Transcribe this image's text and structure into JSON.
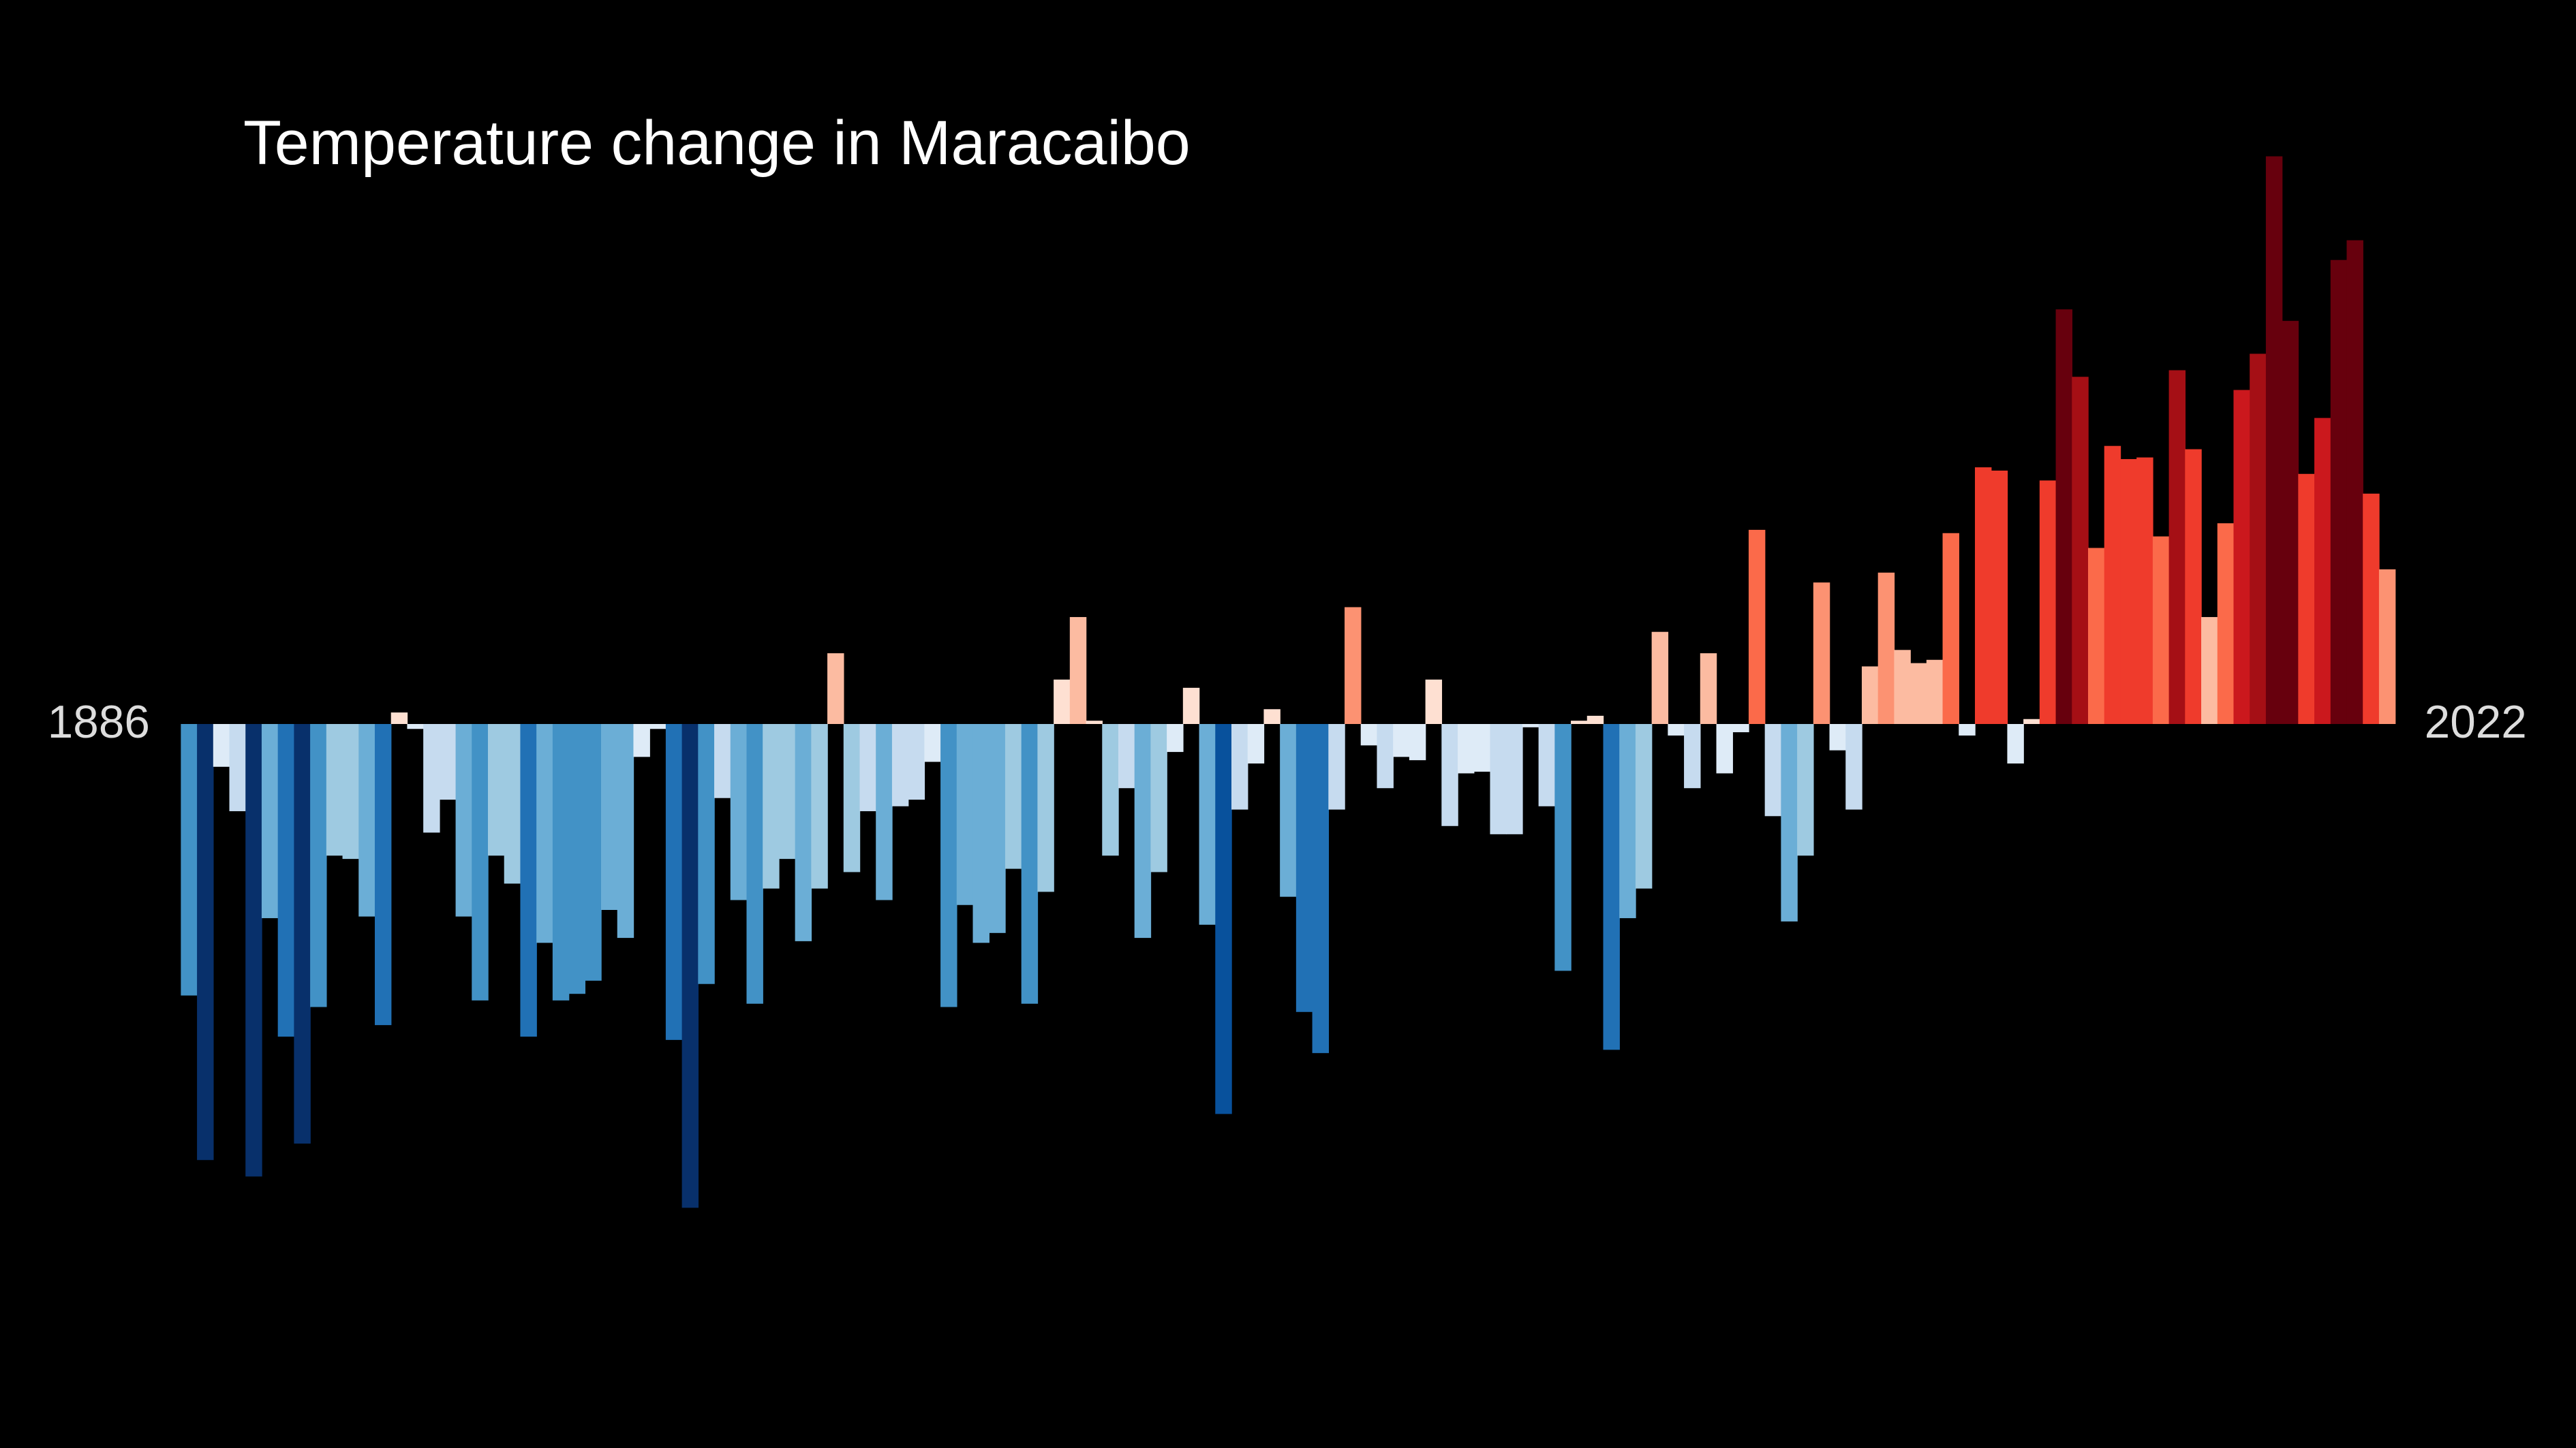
{
  "chart_data": {
    "type": "bar",
    "title": "Temperature change in Maracaibo",
    "x": [
      1886,
      1887,
      1888,
      1889,
      1890,
      1891,
      1892,
      1893,
      1894,
      1895,
      1896,
      1897,
      1898,
      1899,
      1900,
      1901,
      1902,
      1903,
      1904,
      1905,
      1906,
      1907,
      1908,
      1909,
      1910,
      1911,
      1912,
      1913,
      1914,
      1915,
      1916,
      1917,
      1918,
      1919,
      1920,
      1921,
      1922,
      1923,
      1924,
      1925,
      1926,
      1927,
      1928,
      1929,
      1930,
      1931,
      1932,
      1933,
      1934,
      1935,
      1936,
      1937,
      1938,
      1939,
      1940,
      1941,
      1942,
      1943,
      1944,
      1945,
      1946,
      1947,
      1948,
      1949,
      1950,
      1951,
      1952,
      1953,
      1954,
      1955,
      1956,
      1957,
      1958,
      1959,
      1960,
      1961,
      1962,
      1963,
      1964,
      1965,
      1966,
      1967,
      1968,
      1969,
      1970,
      1971,
      1972,
      1973,
      1974,
      1975,
      1976,
      1977,
      1978,
      1979,
      1980,
      1981,
      1982,
      1983,
      1984,
      1985,
      1986,
      1987,
      1988,
      1989,
      1990,
      1991,
      1992,
      1993,
      1994,
      1995,
      1996,
      1997,
      1998,
      1999,
      2000,
      2001,
      2002,
      2003,
      2004,
      2005,
      2006,
      2007,
      2008,
      2009,
      2010,
      2011,
      2012,
      2013,
      2014,
      2015,
      2016,
      2017,
      2018,
      2019,
      2020,
      2021,
      2022
    ],
    "values": [
      -1.65,
      -2.65,
      -0.26,
      -0.53,
      -2.75,
      -1.18,
      -1.9,
      -2.55,
      -1.72,
      -0.8,
      -0.82,
      -1.17,
      -1.83,
      0.07,
      -0.03,
      -0.66,
      -0.46,
      -1.17,
      -1.68,
      -0.8,
      -0.97,
      -1.9,
      -1.33,
      -1.68,
      -1.64,
      -1.56,
      -1.13,
      -1.3,
      -0.2,
      -0.03,
      -1.92,
      -2.94,
      -1.58,
      -0.45,
      -1.07,
      -1.7,
      -1.0,
      -0.82,
      -1.32,
      -1.0,
      0.43,
      -0.9,
      -0.53,
      -1.07,
      -0.5,
      -0.46,
      -0.23,
      -1.72,
      -1.1,
      -1.33,
      -1.27,
      -0.88,
      -1.7,
      -1.02,
      0.27,
      0.65,
      0.02,
      -0.8,
      -0.39,
      -1.3,
      -0.9,
      -0.17,
      0.22,
      -1.22,
      -2.37,
      -0.52,
      -0.24,
      0.09,
      -1.05,
      -1.75,
      -2.0,
      -0.52,
      0.71,
      -0.13,
      -0.39,
      -0.2,
      -0.22,
      0.27,
      -0.62,
      -0.3,
      -0.29,
      -0.67,
      -0.67,
      -0.02,
      -0.5,
      -1.5,
      0.02,
      0.05,
      -1.98,
      -1.18,
      -1.0,
      0.56,
      -0.07,
      -0.39,
      0.43,
      -0.3,
      -0.05,
      1.18,
      -0.56,
      -1.2,
      -0.8,
      0.86,
      -0.16,
      -0.52,
      0.35,
      0.92,
      0.45,
      0.37,
      0.39,
      1.16,
      -0.07,
      1.56,
      1.54,
      -0.24,
      0.03,
      1.48,
      2.52,
      2.11,
      1.07,
      1.69,
      1.61,
      1.62,
      1.14,
      2.15,
      1.67,
      0.65,
      1.22,
      2.03,
      2.25,
      3.45,
      2.45,
      1.52,
      1.86,
      2.82,
      2.94,
      1.4,
      0.94
    ],
    "xlim": [
      1885.5,
      2022.5
    ],
    "ylim": [
      -4.4,
      4.4
    ],
    "palette": [
      "#08306b",
      "#08519c",
      "#2171b5",
      "#4292c6",
      "#6baed6",
      "#9ecae1",
      "#c6dbef",
      "#deebf7",
      "#fee0d2",
      "#fcbba1",
      "#fc9272",
      "#fb6a4a",
      "#ef3b2c",
      "#cb181d",
      "#a50f15",
      "#67000d"
    ]
  }
}
